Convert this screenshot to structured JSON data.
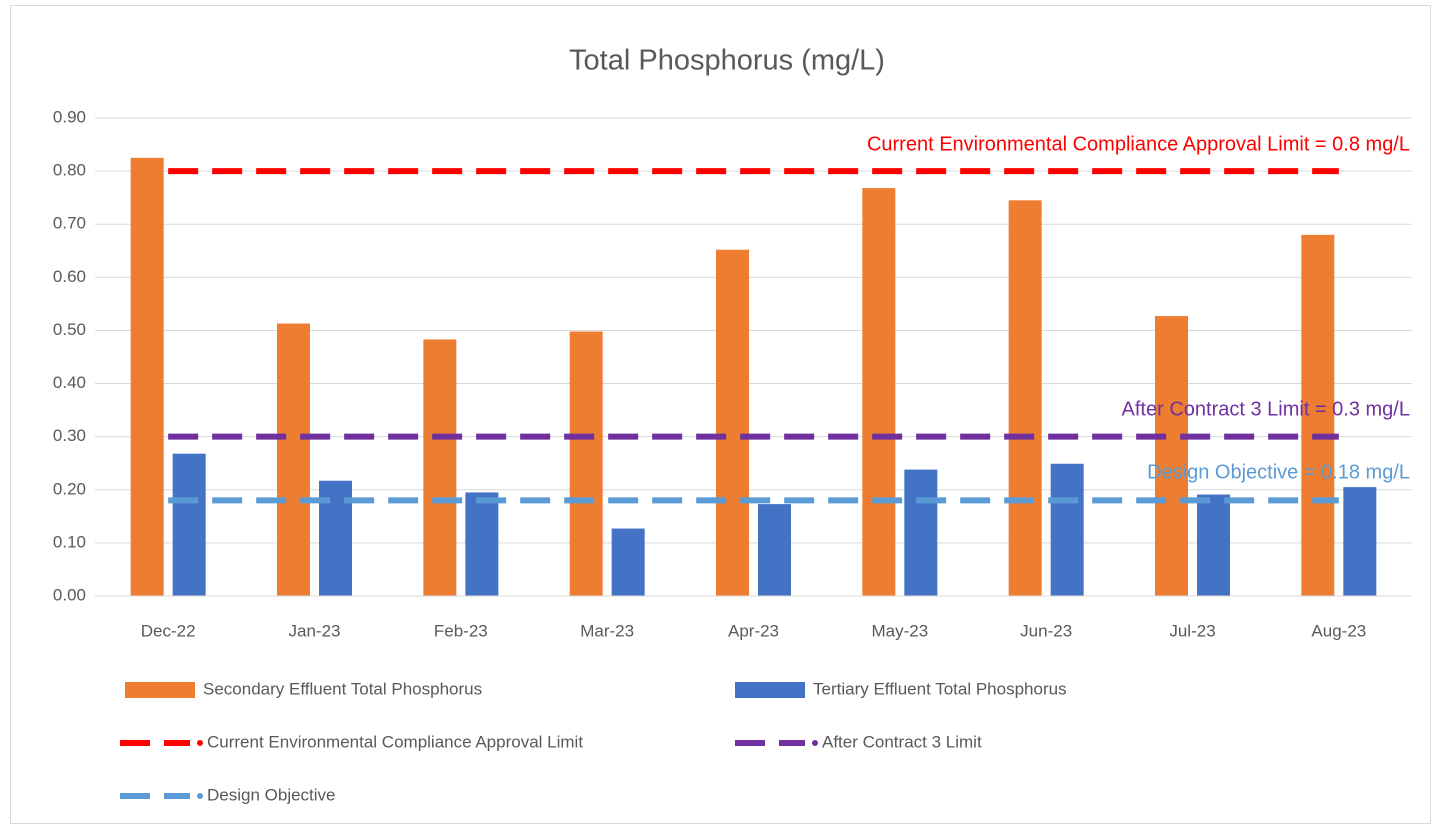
{
  "chart_data": {
    "type": "bar",
    "title": "Total Phosphorus (mg/L)",
    "categories": [
      "Dec-22",
      "Jan-23",
      "Feb-23",
      "Mar-23",
      "Apr-23",
      "May-23",
      "Jun-23",
      "Jul-23",
      "Aug-23"
    ],
    "series": [
      {
        "name": "Secondary Effluent Total Phosphorus",
        "type": "bar",
        "color": "#ed7d31",
        "values": [
          0.825,
          0.513,
          0.483,
          0.498,
          0.652,
          0.768,
          0.745,
          0.527,
          0.68
        ]
      },
      {
        "name": "Tertiary Effluent Total Phosphorus",
        "type": "bar",
        "color": "#4472c4",
        "values": [
          0.268,
          0.217,
          0.195,
          0.127,
          0.173,
          0.238,
          0.249,
          0.191,
          0.205
        ]
      },
      {
        "name": "Current Environmental Compliance Approval Limit",
        "type": "line",
        "color": "#ff0000",
        "values": [
          0.8,
          0.8,
          0.8,
          0.8,
          0.8,
          0.8,
          0.8,
          0.8,
          0.8
        ]
      },
      {
        "name": "After Contract 3 Limit",
        "type": "line",
        "color": "#7030a0",
        "values": [
          0.3,
          0.3,
          0.3,
          0.3,
          0.3,
          0.3,
          0.3,
          0.3,
          0.3
        ]
      },
      {
        "name": "Design Objective",
        "type": "line",
        "color": "#5b9bd5",
        "values": [
          0.18,
          0.18,
          0.18,
          0.18,
          0.18,
          0.18,
          0.18,
          0.18,
          0.18
        ]
      }
    ],
    "annotations": [
      "Current Environmental Compliance Approval Limit = 0.8 mg/L",
      "After Contract 3 Limit = 0.3 mg/L",
      "Design Objective = 0.18 mg/L"
    ],
    "ylim": [
      0,
      0.9
    ],
    "yticks": [
      {
        "value": 0,
        "label": "0.00"
      },
      {
        "value": 0.1,
        "label": "0.10"
      },
      {
        "value": 0.2,
        "label": "0.20"
      },
      {
        "value": 0.3,
        "label": "0.30"
      },
      {
        "value": 0.4,
        "label": "0.40"
      },
      {
        "value": 0.5,
        "label": "0.50"
      },
      {
        "value": 0.6,
        "label": "0.60"
      },
      {
        "value": 0.7,
        "label": "0.70"
      },
      {
        "value": 0.8,
        "label": "0.80"
      },
      {
        "value": 0.9,
        "label": "0.90"
      }
    ],
    "grid": true,
    "legend": "bottom"
  }
}
